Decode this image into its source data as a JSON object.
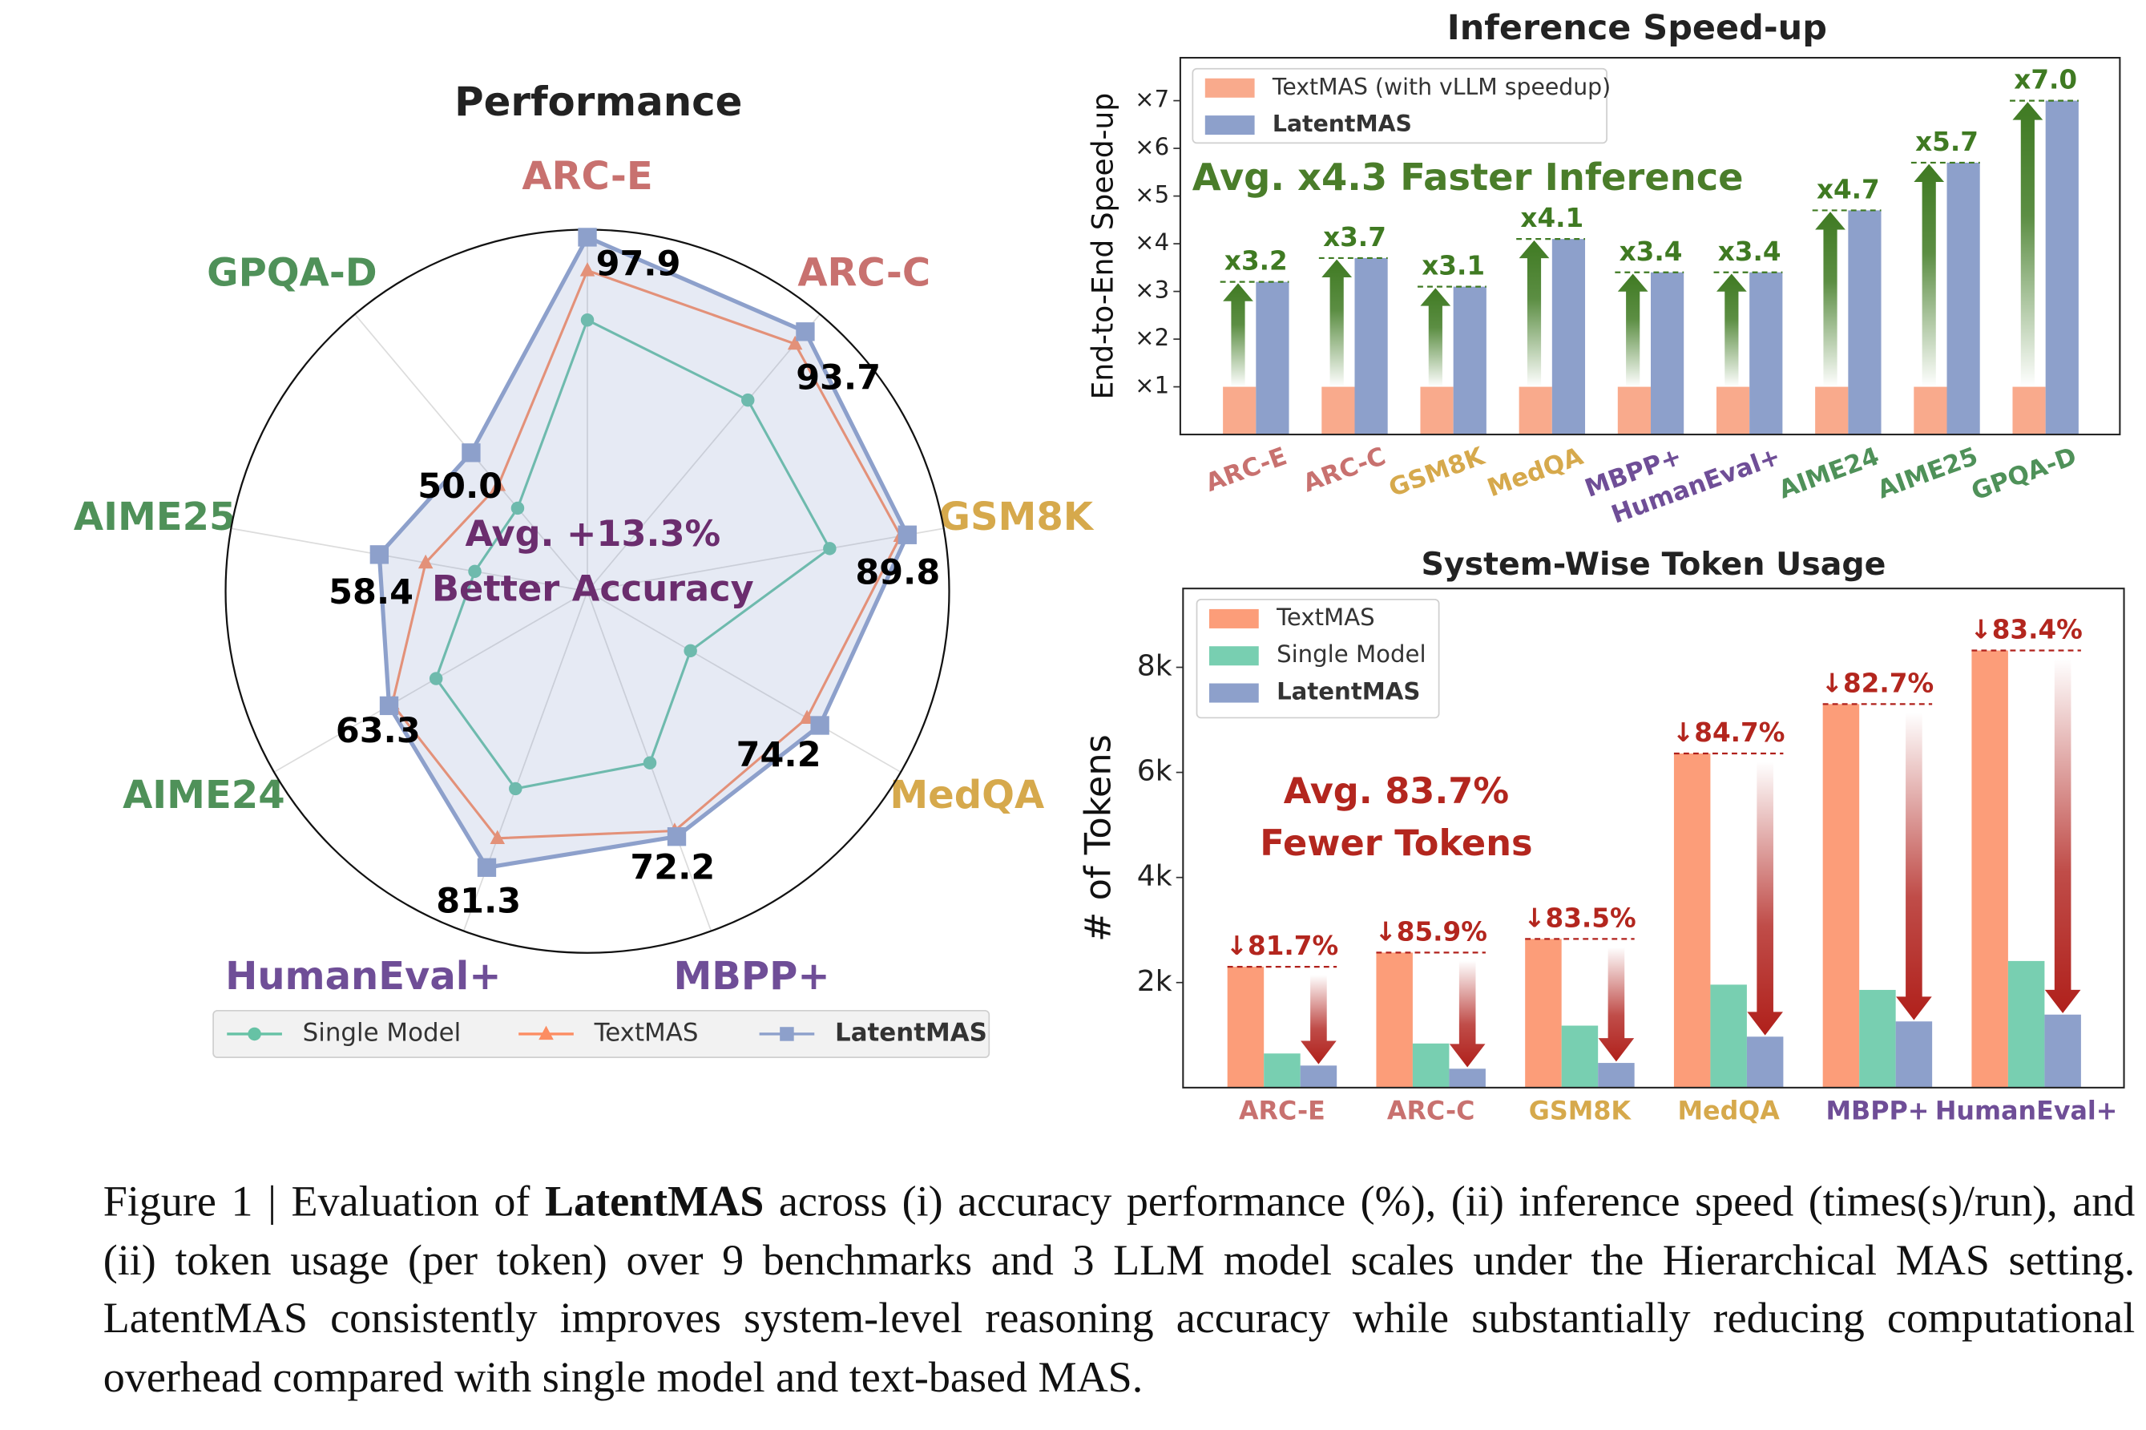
{
  "chart_data": [
    {
      "type": "radar",
      "title": "Performance",
      "categories": [
        "ARC-E",
        "ARC-C",
        "GSM8K",
        "MedQA",
        "MBPP+",
        "HumanEval+",
        "AIME24",
        "AIME25",
        "GPQA-D"
      ],
      "category_colors": [
        "#c8716f",
        "#c8716f",
        "#d6a94c",
        "#d6a94c",
        "#6f4e97",
        "#6f4e97",
        "#4f9159",
        "#4f9159",
        "#4f9159"
      ],
      "rlim": [
        0,
        100
      ],
      "series": [
        {
          "name": "Single Model",
          "color": "#66c2a5",
          "marker": "circle",
          "values": [
            75.0,
            69.0,
            68.0,
            32.9,
            50.5,
            58.1,
            48.3,
            31.6,
            30.0
          ]
        },
        {
          "name": "TextMAS",
          "color": "#fc8d62",
          "marker": "triangle",
          "values": [
            88.7,
            89.3,
            87.9,
            70.1,
            70.5,
            72.7,
            62.3,
            45.4,
            38.3
          ]
        },
        {
          "name": "LatentMAS",
          "color": "#8da0cb",
          "marker": "square",
          "fill": true,
          "bold": true,
          "values": [
            97.9,
            93.7,
            89.8,
            74.2,
            72.2,
            81.3,
            63.3,
            58.4,
            50.0
          ],
          "value_labels": [
            "97.9",
            "93.7",
            "89.8",
            "74.2",
            "72.2",
            "81.3",
            "63.3",
            "58.4",
            "50.0"
          ]
        }
      ],
      "annotation": [
        "Avg. +13.3%",
        "Better Accuracy"
      ],
      "annotation_color": "#6b2d6e",
      "legend": "lower center"
    },
    {
      "type": "bar",
      "title": "Inference Speed-up",
      "ylabel": "End-to-End Speed-up",
      "categories": [
        "ARC-E",
        "ARC-C",
        "GSM8K",
        "MedQA",
        "MBPP+",
        "HumanEval+",
        "AIME24",
        "AIME25",
        "GPQA-D"
      ],
      "category_colors": [
        "#c8716f",
        "#c8716f",
        "#d6a94c",
        "#d6a94c",
        "#6f4e97",
        "#6f4e97",
        "#4f9159",
        "#4f9159",
        "#4f9159"
      ],
      "series": [
        {
          "name": "TextMAS (with vLLM speedup)",
          "color": "#f9aa8c",
          "values": [
            1,
            1,
            1,
            1,
            1,
            1,
            1,
            1,
            1
          ]
        },
        {
          "name": "LatentMAS",
          "color": "#8da0cb",
          "bold": true,
          "values": [
            3.2,
            3.7,
            3.1,
            4.1,
            3.4,
            3.4,
            4.7,
            5.7,
            7.0
          ],
          "value_labels": [
            "x3.2",
            "x3.7",
            "x3.1",
            "x4.1",
            "x3.4",
            "x3.4",
            "x4.7",
            "x5.7",
            "x7.0"
          ]
        }
      ],
      "ylim": [
        0,
        7.9
      ],
      "yticks": [
        {
          "value": 1,
          "label": "×1"
        },
        {
          "value": 2,
          "label": "×2"
        },
        {
          "value": 3,
          "label": "×3"
        },
        {
          "value": 4,
          "label": "×4"
        },
        {
          "value": 5,
          "label": "×5"
        },
        {
          "value": 6,
          "label": "×6"
        },
        {
          "value": 7,
          "label": "×7"
        }
      ],
      "annotation": [
        "Avg. x4.3 Faster Inference"
      ],
      "annotation_color": "#4a7d2a",
      "legend": "upper left"
    },
    {
      "type": "bar",
      "title": "System-Wise Token Usage",
      "ylabel": "# of Tokens",
      "categories": [
        "ARC-E",
        "ARC-C",
        "GSM8K",
        "MedQA",
        "MBPP+",
        "HumanEval+"
      ],
      "category_colors": [
        "#c8716f",
        "#c8716f",
        "#d6a94c",
        "#d6a94c",
        "#6f4e97",
        "#6f4e97"
      ],
      "series": [
        {
          "name": "TextMAS",
          "color": "#fc9d79",
          "values": [
            2300,
            2570,
            2830,
            6360,
            7300,
            8320
          ]
        },
        {
          "name": "Single Model",
          "color": "#78cfb1",
          "values": [
            650,
            840,
            1180,
            1960,
            1860,
            2410
          ]
        },
        {
          "name": "LatentMAS",
          "color": "#8da0cb",
          "bold": true,
          "values": [
            420,
            360,
            470,
            970,
            1260,
            1390
          ]
        }
      ],
      "reduction_labels": [
        "↓81.7%",
        "↓85.9%",
        "↓83.5%",
        "↓84.7%",
        "↓82.7%",
        "↓83.4%"
      ],
      "ylim": [
        0,
        9500
      ],
      "yticks": [
        {
          "value": 2000,
          "label": "2k"
        },
        {
          "value": 4000,
          "label": "4k"
        },
        {
          "value": 6000,
          "label": "6k"
        },
        {
          "value": 8000,
          "label": "8k"
        }
      ],
      "annotation": [
        "Avg. 83.7%",
        "Fewer Tokens"
      ],
      "annotation_color": "#b3261e",
      "legend": "upper left"
    }
  ],
  "caption": {
    "before": "Figure 1 | Evaluation of",
    "emphasis": "LatentMAS",
    "after": "across (i) accuracy performance (%), (ii) inference speed (times(s)/run), and (ii) token usage (per token) over 9 benchmarks and 3 LLM model scales under the Hierarchical MAS setting. LatentMAS consistently improves system-level reasoning accuracy while substantially reducing computational overhead compared with single model and text-based MAS."
  }
}
